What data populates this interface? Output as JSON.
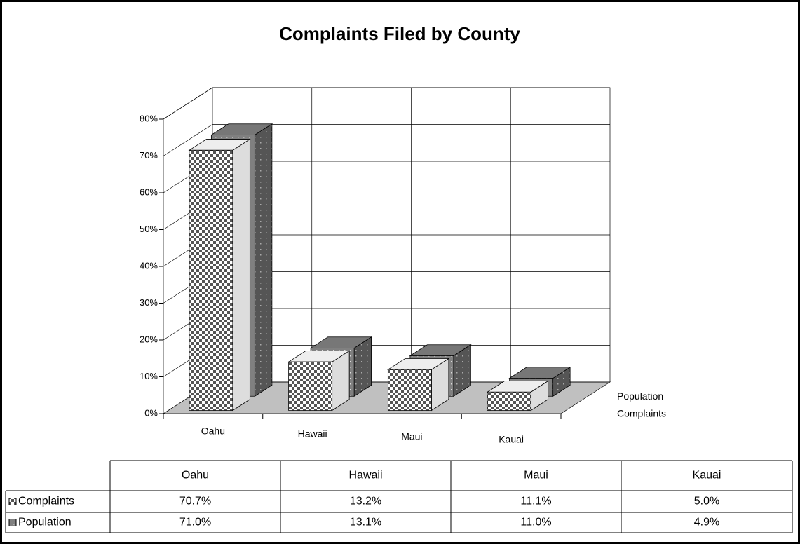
{
  "chart_data": {
    "type": "bar3d",
    "title": "Complaints Filed by County",
    "categories": [
      "Oahu",
      "Hawaii",
      "Maui",
      "Kauai"
    ],
    "series": [
      {
        "name": "Complaints",
        "color": "#ffffff",
        "values": [
          70.7,
          13.2,
          11.1,
          5.0
        ],
        "value_labels": [
          "70.7%",
          "13.2%",
          "11.1%",
          "5.0%"
        ]
      },
      {
        "name": "Population",
        "color": "#808080",
        "values": [
          71.0,
          13.1,
          11.0,
          4.9
        ],
        "value_labels": [
          "71.0%",
          "13.1%",
          "11.0%",
          "4.9%"
        ]
      }
    ],
    "ylim": [
      0,
      80
    ],
    "yticks": [
      {
        "value": 0,
        "label": "0%"
      },
      {
        "value": 10,
        "label": "10%"
      },
      {
        "value": 20,
        "label": "20%"
      },
      {
        "value": 30,
        "label": "30%"
      },
      {
        "value": 40,
        "label": "40%"
      },
      {
        "value": 50,
        "label": "50%"
      },
      {
        "value": 60,
        "label": "60%"
      },
      {
        "value": 70,
        "label": "70%"
      },
      {
        "value": 80,
        "label": "80%"
      }
    ],
    "grid": true,
    "data_table": true
  }
}
